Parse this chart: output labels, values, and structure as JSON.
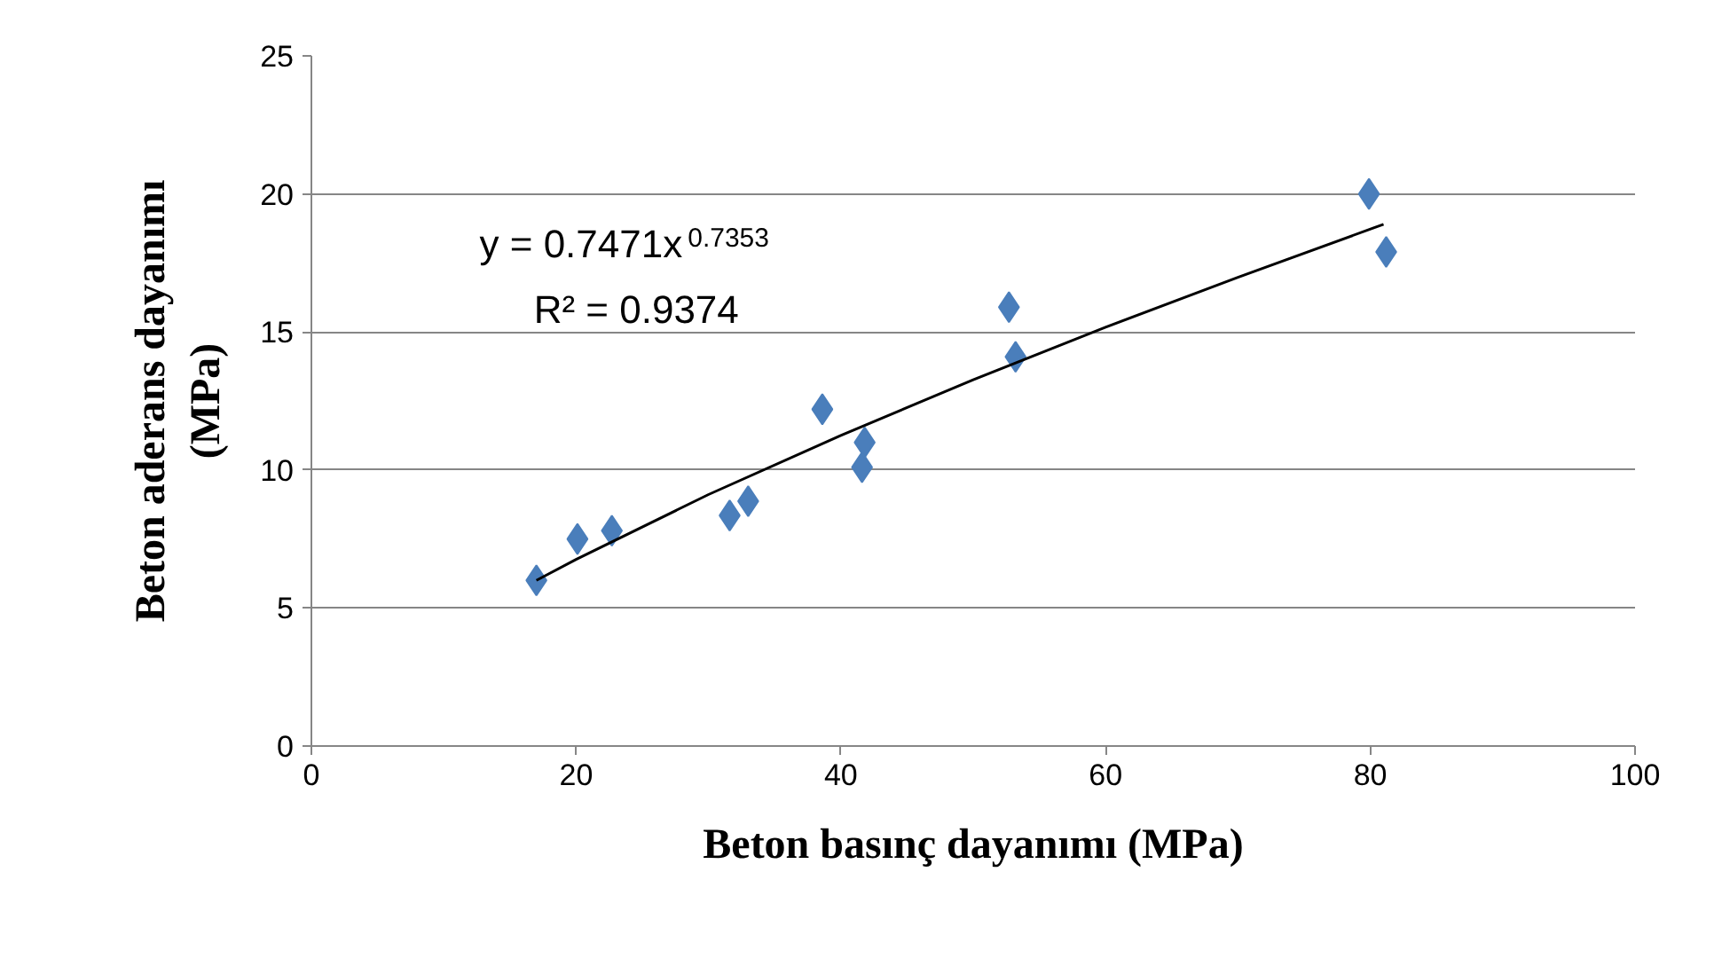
{
  "chart_data": {
    "type": "scatter",
    "xlabel": "Beton basınç dayanımı (MPa)",
    "ylabel": "Beton aderans dayanımı\n(MPa)",
    "xlim": [
      0,
      100
    ],
    "xticks": [
      0,
      20,
      40,
      60,
      80,
      100
    ],
    "ylim": [
      0,
      25
    ],
    "yticks": [
      0,
      5,
      10,
      15,
      20,
      25
    ],
    "grid": "y",
    "marker": "diamond",
    "series": [
      {
        "color": "#4a7ebb",
        "x": [
          17.0,
          20.1,
          22.7,
          31.6,
          33.0,
          38.6,
          41.6,
          41.8,
          52.7,
          53.2,
          79.9,
          81.2
        ],
        "values": [
          6.0,
          7.5,
          7.8,
          8.35,
          8.87,
          12.2,
          10.1,
          11.0,
          15.9,
          14.1,
          20.0,
          17.9
        ]
      },
      {
        "type": "line",
        "color": "#000000",
        "marker": "none",
        "x": [
          17,
          20,
          30,
          40,
          50,
          60,
          70,
          81
        ],
        "values": [
          6.0,
          6.76,
          9.11,
          11.25,
          13.27,
          15.17,
          16.98,
          18.9
        ]
      }
    ],
    "annotations": [
      "y = 0.7471x$^{0.7353}$",
      "R² = 0.9374"
    ]
  }
}
